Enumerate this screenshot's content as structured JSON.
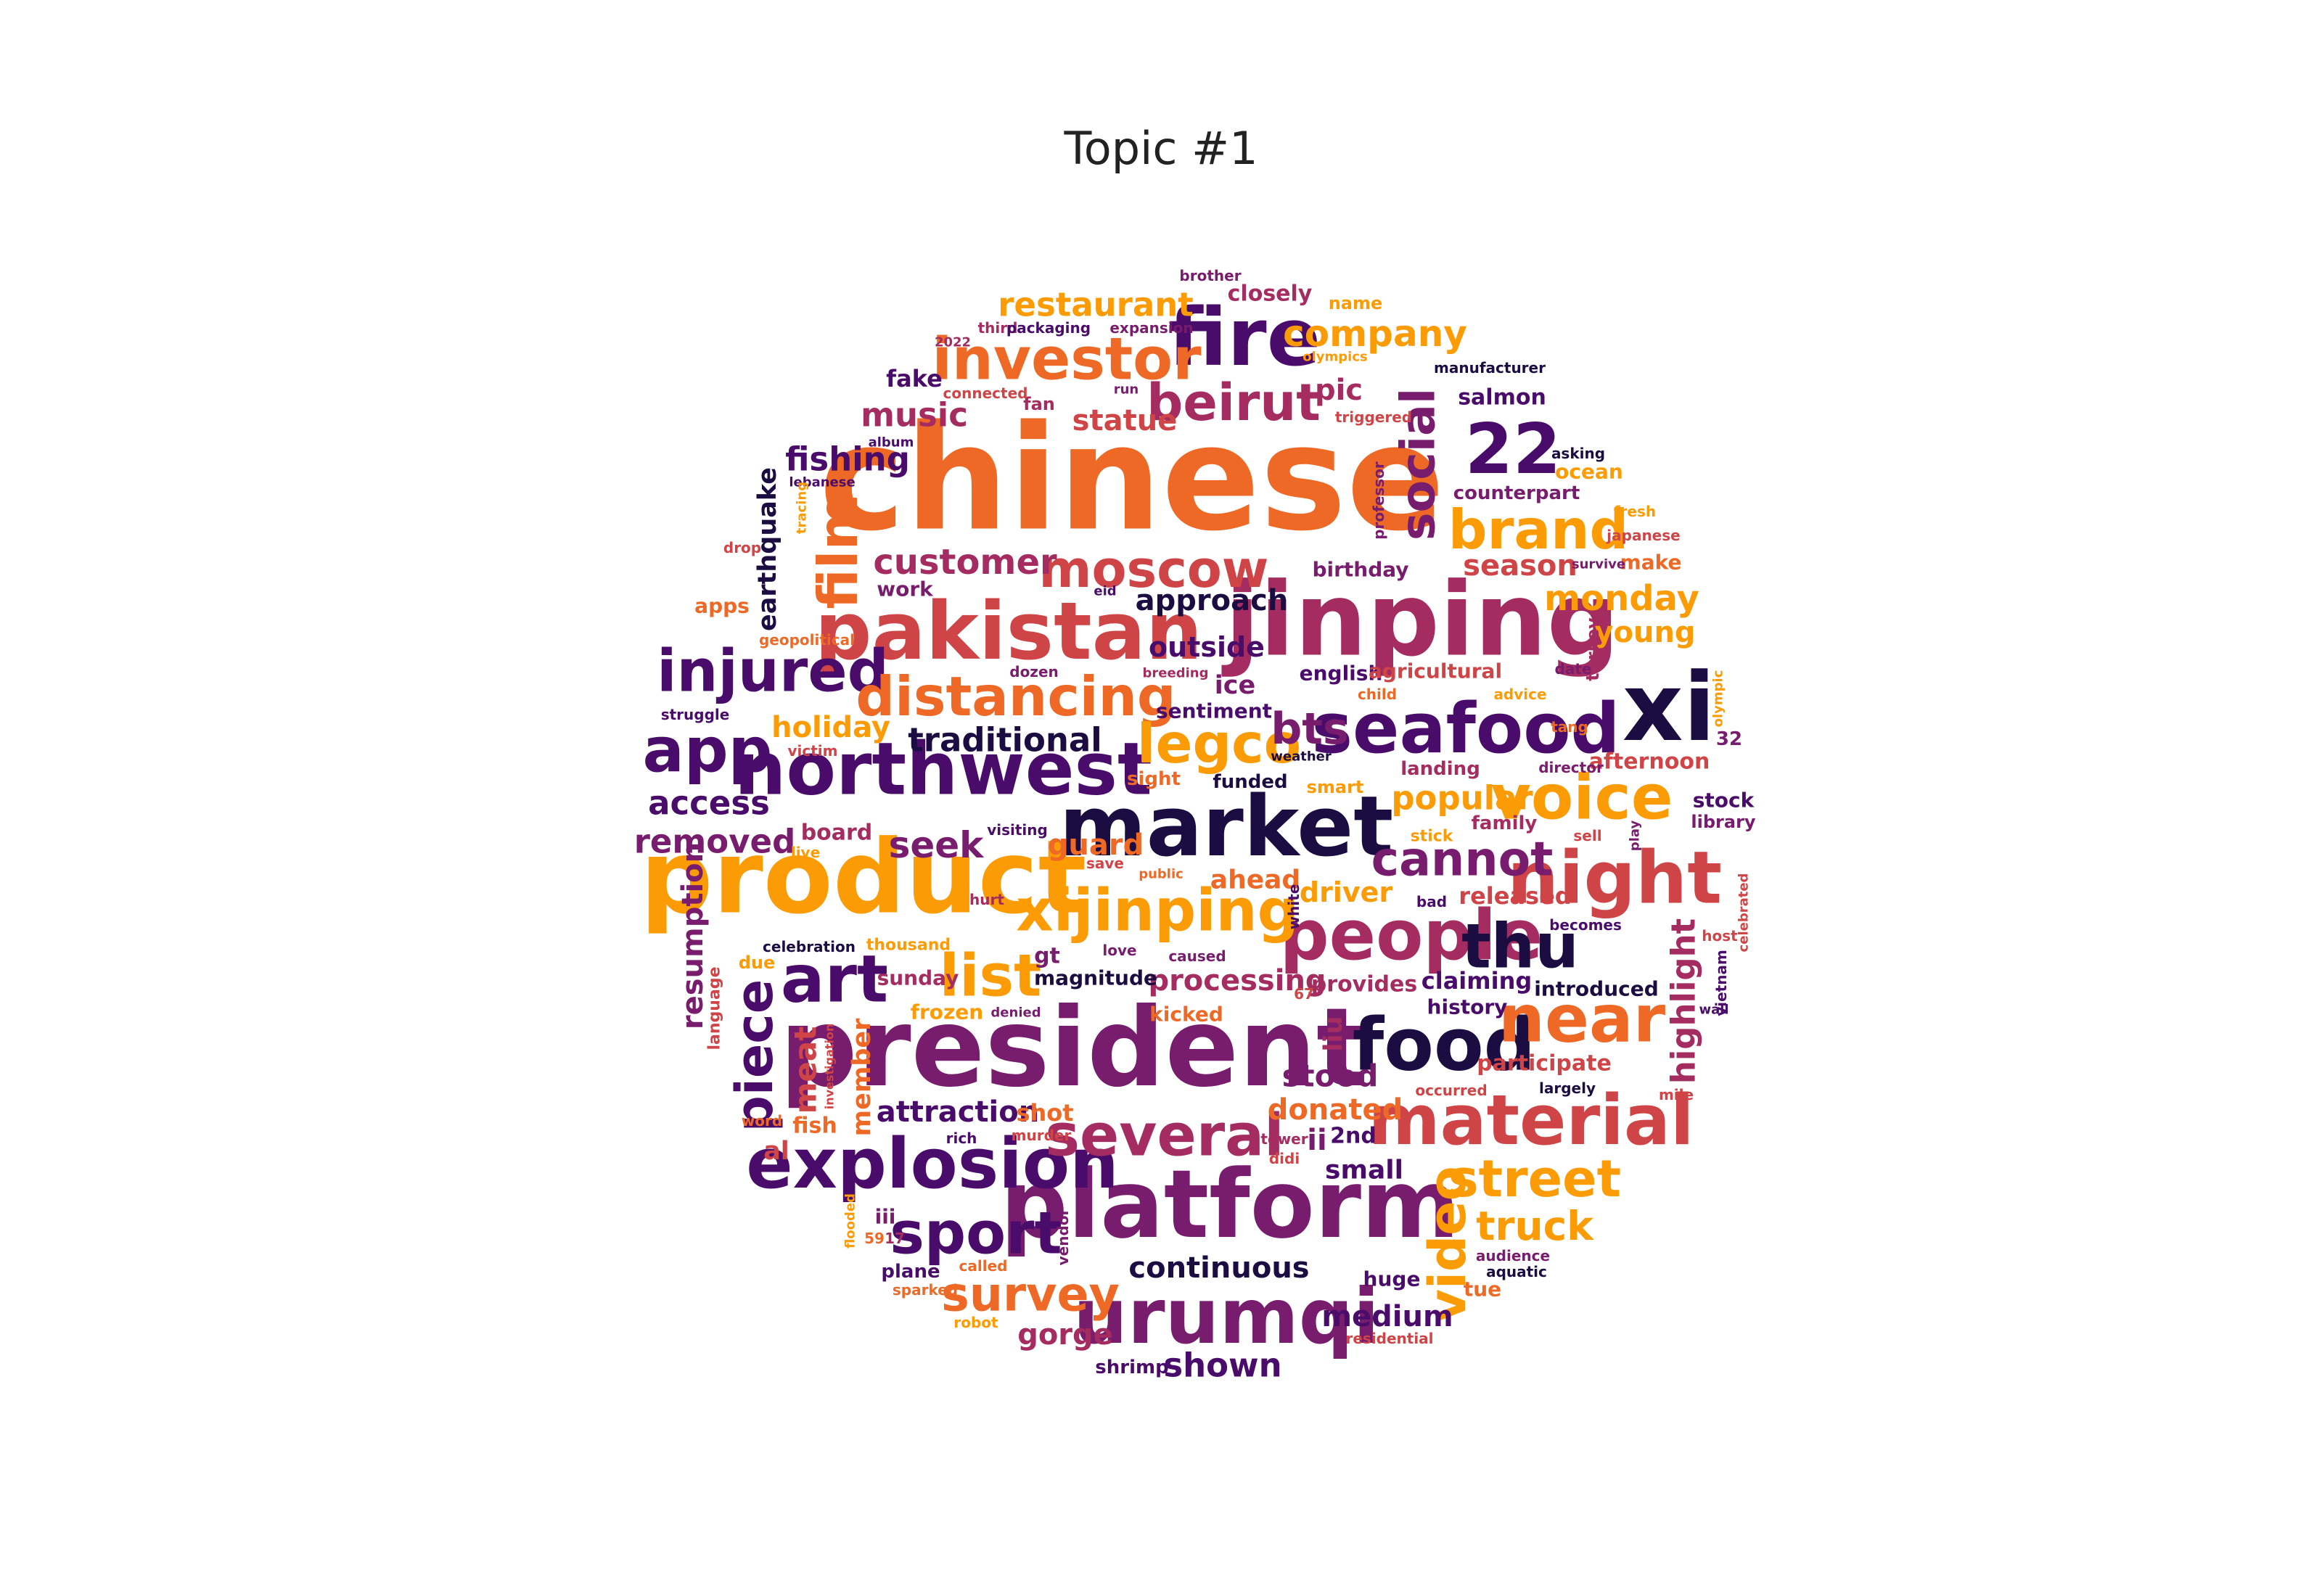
{
  "title": "Topic #1",
  "palette": [
    "#1b0c41",
    "#4a0c6b",
    "#781c6d",
    "#a52c60",
    "#cf4446",
    "#ed6925",
    "#fb9b06",
    "#f7d13d"
  ],
  "words": [
    {
      "text": "chinese",
      "color": "#ed6925",
      "rank": 1
    },
    {
      "text": "president",
      "color": "#781c6d",
      "rank": 2
    },
    {
      "text": "jinping",
      "color": "#a52c60",
      "rank": 3
    },
    {
      "text": "platform",
      "color": "#781c6d",
      "rank": 4
    },
    {
      "text": "product",
      "color": "#fb9b06",
      "rank": 5
    },
    {
      "text": "market",
      "color": "#1b0c41",
      "rank": 6
    },
    {
      "text": "northwest",
      "color": "#4a0c6b",
      "rank": 7
    },
    {
      "text": "pakistan",
      "color": "#cf4446",
      "rank": 8
    },
    {
      "text": "xi",
      "color": "#1b0c41",
      "rank": 9
    },
    {
      "text": "fire",
      "color": "#4a0c6b",
      "rank": 10
    },
    {
      "text": "seafood",
      "color": "#4a0c6b",
      "rank": 11
    },
    {
      "text": "urumqi",
      "color": "#781c6d",
      "rank": 12
    },
    {
      "text": "people",
      "color": "#a52c60",
      "rank": 13
    },
    {
      "text": "explosion",
      "color": "#4a0c6b",
      "rank": 14
    },
    {
      "text": "material",
      "color": "#cf4446",
      "rank": 15
    },
    {
      "text": "xijinping",
      "color": "#fb9b06",
      "rank": 16
    },
    {
      "text": "night",
      "color": "#cf4446",
      "rank": 17
    },
    {
      "text": "food",
      "color": "#1b0c41",
      "rank": 18
    },
    {
      "text": "investor",
      "color": "#ed6925",
      "rank": 19
    },
    {
      "text": "injured",
      "color": "#4a0c6b",
      "rank": 20
    },
    {
      "text": "distancing",
      "color": "#ed6925",
      "rank": 21
    },
    {
      "text": "several",
      "color": "#a52c60",
      "rank": 22
    },
    {
      "text": "art",
      "color": "#4a0c6b",
      "rank": 23
    },
    {
      "text": "voice",
      "color": "#fb9b06",
      "rank": 24
    },
    {
      "text": "near",
      "color": "#ed6925",
      "rank": 25
    },
    {
      "text": "app",
      "color": "#4a0c6b",
      "rank": 26
    },
    {
      "text": "social",
      "color": "#781c6d",
      "rank": 27
    },
    {
      "text": "film",
      "color": "#ed6925",
      "rank": 28
    },
    {
      "text": "legco",
      "color": "#fb9b06",
      "rank": 29
    },
    {
      "text": "sport",
      "color": "#4a0c6b",
      "rank": 30
    },
    {
      "text": "brand",
      "color": "#fb9b06",
      "rank": 31
    },
    {
      "text": "moscow",
      "color": "#cf4446",
      "rank": 32
    },
    {
      "text": "22",
      "color": "#4a0c6b",
      "rank": 33
    },
    {
      "text": "thu",
      "color": "#1b0c41",
      "rank": 34
    },
    {
      "text": "beirut",
      "color": "#a52c60",
      "rank": 35
    },
    {
      "text": "street",
      "color": "#fb9b06",
      "rank": 36
    },
    {
      "text": "list",
      "color": "#fb9b06",
      "rank": 37
    },
    {
      "text": "video",
      "color": "#fb9b06",
      "rank": 38
    },
    {
      "text": "piece",
      "color": "#4a0c6b",
      "rank": 39
    },
    {
      "text": "survey",
      "color": "#ed6925",
      "rank": 40
    },
    {
      "text": "cannot",
      "color": "#781c6d",
      "rank": 41
    },
    {
      "text": "company",
      "color": "#fb9b06",
      "rank": 42
    },
    {
      "text": "bts",
      "color": "#781c6d",
      "rank": 43
    },
    {
      "text": "highlight",
      "color": "#a52c60",
      "rank": 44
    },
    {
      "text": "customer",
      "color": "#a52c60",
      "rank": 45
    },
    {
      "text": "restaurant",
      "color": "#fb9b06",
      "rank": 46
    },
    {
      "text": "traditional",
      "color": "#1b0c41",
      "rank": 47
    },
    {
      "text": "truck",
      "color": "#fb9b06",
      "rank": 48
    },
    {
      "text": "seek",
      "color": "#781c6d",
      "rank": 49
    },
    {
      "text": "music",
      "color": "#a52c60",
      "rank": 50
    },
    {
      "text": "monday",
      "color": "#fb9b06",
      "rank": 51
    },
    {
      "text": "removed",
      "color": "#781c6d",
      "rank": 52
    },
    {
      "text": "fishing",
      "color": "#4a0c6b",
      "rank": 53
    },
    {
      "text": "access",
      "color": "#4a0c6b",
      "rank": 54
    },
    {
      "text": "popular",
      "color": "#fb9b06",
      "rank": 55
    },
    {
      "text": "meat",
      "color": "#cf4446",
      "rank": 56
    },
    {
      "text": "resumption",
      "color": "#781c6d",
      "rank": 57
    },
    {
      "text": "earthquake",
      "color": "#1b0c41",
      "rank": 58
    },
    {
      "text": "holiday",
      "color": "#fb9b06",
      "rank": 59
    },
    {
      "text": "approach",
      "color": "#1b0c41",
      "rank": 60
    },
    {
      "text": "statue",
      "color": "#cf4446",
      "rank": 61
    },
    {
      "text": "season",
      "color": "#cf4446",
      "rank": 62
    },
    {
      "text": "processing",
      "color": "#a52c60",
      "rank": 63
    },
    {
      "text": "continuous",
      "color": "#1b0c41",
      "rank": 64
    },
    {
      "text": "attraction",
      "color": "#4a0c6b",
      "rank": 65
    },
    {
      "text": "donated",
      "color": "#ed6925",
      "rank": 66
    },
    {
      "text": "stood",
      "color": "#781c6d",
      "rank": 67
    },
    {
      "text": "medium",
      "color": "#4a0c6b",
      "rank": 68
    },
    {
      "text": "shown",
      "color": "#4a0c6b",
      "rank": 69
    },
    {
      "text": "gorge",
      "color": "#a52c60",
      "rank": 70
    },
    {
      "text": "outside",
      "color": "#4a0c6b",
      "rank": 71
    },
    {
      "text": "young",
      "color": "#fb9b06",
      "rank": 72
    },
    {
      "text": "driver",
      "color": "#fb9b06",
      "rank": 73
    },
    {
      "text": "guard",
      "color": "#ed6925",
      "rank": 74
    },
    {
      "text": "member",
      "color": "#ed6925",
      "rank": 75
    },
    {
      "text": "released",
      "color": "#cf4446",
      "rank": 76
    },
    {
      "text": "claiming",
      "color": "#4a0c6b",
      "rank": 77
    },
    {
      "text": "participate",
      "color": "#cf4446",
      "rank": 78
    },
    {
      "text": "ahead",
      "color": "#ed6925",
      "rank": 79
    },
    {
      "text": "pic",
      "color": "#a52c60",
      "rank": 80
    },
    {
      "text": "fake",
      "color": "#4a0c6b",
      "rank": 81
    },
    {
      "text": "ice",
      "color": "#781c6d",
      "rank": 82
    },
    {
      "text": "board",
      "color": "#a52c60",
      "rank": 83
    },
    {
      "text": "small",
      "color": "#4a0c6b",
      "rank": 84
    },
    {
      "text": "sunday",
      "color": "#a52c60",
      "rank": 85
    },
    {
      "text": "history",
      "color": "#4a0c6b",
      "rank": 86
    },
    {
      "text": "provides",
      "color": "#a52c60",
      "rank": 87
    },
    {
      "text": "introduced",
      "color": "#1b0c41",
      "rank": 88
    },
    {
      "text": "ii",
      "color": "#781c6d",
      "rank": 89
    },
    {
      "text": "liu",
      "color": "#a52c60",
      "rank": 90
    },
    {
      "text": "al",
      "color": "#cf4446",
      "rank": 91
    },
    {
      "text": "fish",
      "color": "#ed6925",
      "rank": 92
    },
    {
      "text": "work",
      "color": "#781c6d",
      "rank": 93
    },
    {
      "text": "shot",
      "color": "#ed6925",
      "rank": 94
    },
    {
      "text": "kicked",
      "color": "#ed6925",
      "rank": 95
    },
    {
      "text": "sentiment",
      "color": "#4a0c6b",
      "rank": 96
    },
    {
      "text": "funded",
      "color": "#1b0c41",
      "rank": 97
    },
    {
      "text": "birthday",
      "color": "#781c6d",
      "rank": 98
    },
    {
      "text": "english",
      "color": "#4a0c6b",
      "rank": 99
    },
    {
      "text": "agricultural",
      "color": "#cf4446",
      "rank": 100
    },
    {
      "text": "afternoon",
      "color": "#cf4446",
      "rank": 101
    },
    {
      "text": "landing",
      "color": "#a52c60",
      "rank": 102
    },
    {
      "text": "family",
      "color": "#a52c60",
      "rank": 103
    },
    {
      "text": "stock",
      "color": "#4a0c6b",
      "rank": 104
    },
    {
      "text": "library",
      "color": "#781c6d",
      "rank": 105
    },
    {
      "text": "ocean",
      "color": "#fb9b06",
      "rank": 106
    },
    {
      "text": "make",
      "color": "#ed6925",
      "rank": 107
    },
    {
      "text": "salmon",
      "color": "#4a0c6b",
      "rank": 108
    },
    {
      "text": "counterpart",
      "color": "#781c6d",
      "rank": 109
    },
    {
      "text": "closely",
      "color": "#a52c60",
      "rank": 110
    },
    {
      "text": "apps",
      "color": "#ed6925",
      "rank": 111
    },
    {
      "text": "turkey",
      "color": "#a52c60",
      "rank": 112
    },
    {
      "text": "gt",
      "color": "#781c6d",
      "rank": 113
    },
    {
      "text": "magnitude",
      "color": "#1b0c41",
      "rank": 114
    },
    {
      "text": "2nd",
      "color": "#4a0c6b",
      "rank": 115
    },
    {
      "text": "frozen",
      "color": "#fb9b06",
      "rank": 116
    },
    {
      "text": "smart",
      "color": "#fb9b06",
      "rank": 117
    },
    {
      "text": "sight",
      "color": "#ed6925",
      "rank": 118
    },
    {
      "text": "language",
      "color": "#cf4446",
      "rank": 119
    },
    {
      "text": "plane",
      "color": "#4a0c6b",
      "rank": 120
    },
    {
      "text": "huge",
      "color": "#4a0c6b",
      "rank": 121
    },
    {
      "text": "tue",
      "color": "#ed6925",
      "rank": 122
    },
    {
      "text": "iii",
      "color": "#781c6d",
      "rank": 123
    },
    {
      "text": "due",
      "color": "#fb9b06",
      "rank": 124
    },
    {
      "text": "fan",
      "color": "#a52c60",
      "rank": 125
    },
    {
      "text": "name",
      "color": "#fb9b06",
      "rank": 126
    },
    {
      "text": "brother",
      "color": "#781c6d",
      "rank": 127
    },
    {
      "text": "third",
      "color": "#a52c60",
      "rank": 128
    },
    {
      "text": "packaging",
      "color": "#4a0c6b",
      "rank": 129
    },
    {
      "text": "expansion",
      "color": "#781c6d",
      "rank": 130
    },
    {
      "text": "2022",
      "color": "#a52c60",
      "rank": 131
    },
    {
      "text": "olympics",
      "color": "#fb9b06",
      "rank": 132
    },
    {
      "text": "manufacturer",
      "color": "#1b0c41",
      "rank": 133
    },
    {
      "text": "connected",
      "color": "#cf4446",
      "rank": 134
    },
    {
      "text": "run",
      "color": "#781c6d",
      "rank": 135
    },
    {
      "text": "triggered",
      "color": "#cf4446",
      "rank": 136
    },
    {
      "text": "album",
      "color": "#4a0c6b",
      "rank": 137
    },
    {
      "text": "asking",
      "color": "#1b0c41",
      "rank": 138
    },
    {
      "text": "lebanese",
      "color": "#4a0c6b",
      "rank": 139
    },
    {
      "text": "tracing",
      "color": "#fb9b06",
      "rank": 140
    },
    {
      "text": "professor",
      "color": "#781c6d",
      "rank": 141
    },
    {
      "text": "fresh",
      "color": "#fb9b06",
      "rank": 142
    },
    {
      "text": "japanese",
      "color": "#cf4446",
      "rank": 143
    },
    {
      "text": "survive",
      "color": "#781c6d",
      "rank": 144
    },
    {
      "text": "drop",
      "color": "#cf4446",
      "rank": 145
    },
    {
      "text": "eid",
      "color": "#4a0c6b",
      "rank": 146
    },
    {
      "text": "geopolitical",
      "color": "#ed6925",
      "rank": 147
    },
    {
      "text": "dozen",
      "color": "#781c6d",
      "rank": 148
    },
    {
      "text": "breeding",
      "color": "#a52c60",
      "rank": 149
    },
    {
      "text": "child",
      "color": "#ed6925",
      "rank": 150
    },
    {
      "text": "advice",
      "color": "#fb9b06",
      "rank": 151
    },
    {
      "text": "date",
      "color": "#781c6d",
      "rank": 152
    },
    {
      "text": "olympic",
      "color": "#fb9b06",
      "rank": 153
    },
    {
      "text": "struggle",
      "color": "#4a0c6b",
      "rank": 154
    },
    {
      "text": "victim",
      "color": "#cf4446",
      "rank": 155
    },
    {
      "text": "tang",
      "color": "#ed6925",
      "rank": 156
    },
    {
      "text": "32",
      "color": "#781c6d",
      "rank": 157
    },
    {
      "text": "weather",
      "color": "#1b0c41",
      "rank": 158
    },
    {
      "text": "director",
      "color": "#781c6d",
      "rank": 159
    },
    {
      "text": "visiting",
      "color": "#4a0c6b",
      "rank": 160
    },
    {
      "text": "live",
      "color": "#fb9b06",
      "rank": 161
    },
    {
      "text": "save",
      "color": "#cf4446",
      "rank": 162
    },
    {
      "text": "public",
      "color": "#ed6925",
      "rank": 163
    },
    {
      "text": "stick",
      "color": "#fb9b06",
      "rank": 164
    },
    {
      "text": "sell",
      "color": "#cf4446",
      "rank": 165
    },
    {
      "text": "play",
      "color": "#781c6d",
      "rank": 166
    },
    {
      "text": "hurt",
      "color": "#a52c60",
      "rank": 167
    },
    {
      "text": "white",
      "color": "#4a0c6b",
      "rank": 168
    },
    {
      "text": "bad",
      "color": "#4a0c6b",
      "rank": 169
    },
    {
      "text": "becomes",
      "color": "#4a0c6b",
      "rank": 170
    },
    {
      "text": "host",
      "color": "#cf4446",
      "rank": 171
    },
    {
      "text": "celebrated",
      "color": "#cf4446",
      "rank": 172
    },
    {
      "text": "celebration",
      "color": "#1b0c41",
      "rank": 173
    },
    {
      "text": "thousand",
      "color": "#fb9b06",
      "rank": 174
    },
    {
      "text": "love",
      "color": "#781c6d",
      "rank": 175
    },
    {
      "text": "caused",
      "color": "#781c6d",
      "rank": 176
    },
    {
      "text": "67",
      "color": "#cf4446",
      "rank": 177
    },
    {
      "text": "vietnam",
      "color": "#4a0c6b",
      "rank": 178
    },
    {
      "text": "wall",
      "color": "#4a0c6b",
      "rank": 179
    },
    {
      "text": "denied",
      "color": "#781c6d",
      "rank": 180
    },
    {
      "text": "investigation",
      "color": "#cf4446",
      "rank": 181
    },
    {
      "text": "word",
      "color": "#ed6925",
      "rank": 182
    },
    {
      "text": "rich",
      "color": "#4a0c6b",
      "rank": 183
    },
    {
      "text": "murder",
      "color": "#cf4446",
      "rank": 184
    },
    {
      "text": "tower",
      "color": "#a52c60",
      "rank": 185
    },
    {
      "text": "didi",
      "color": "#cf4446",
      "rank": 186
    },
    {
      "text": "occurred",
      "color": "#cf4446",
      "rank": 187
    },
    {
      "text": "largely",
      "color": "#1b0c41",
      "rank": 188
    },
    {
      "text": "mile",
      "color": "#cf4446",
      "rank": 189
    },
    {
      "text": "vendor",
      "color": "#781c6d",
      "rank": 190
    },
    {
      "text": "59",
      "color": "#ed6925",
      "rank": 191
    },
    {
      "text": "17",
      "color": "#a52c60",
      "rank": 192
    },
    {
      "text": "flooded",
      "color": "#fb9b06",
      "rank": 193
    },
    {
      "text": "called",
      "color": "#ed6925",
      "rank": 194
    },
    {
      "text": "sparked",
      "color": "#ed6925",
      "rank": 195
    },
    {
      "text": "robot",
      "color": "#fb9b06",
      "rank": 196
    },
    {
      "text": "audience",
      "color": "#781c6d",
      "rank": 197
    },
    {
      "text": "aquatic",
      "color": "#1b0c41",
      "rank": 198
    },
    {
      "text": "shrimp",
      "color": "#4a0c6b",
      "rank": 199
    },
    {
      "text": "residential",
      "color": "#cf4446",
      "rank": 200
    }
  ]
}
